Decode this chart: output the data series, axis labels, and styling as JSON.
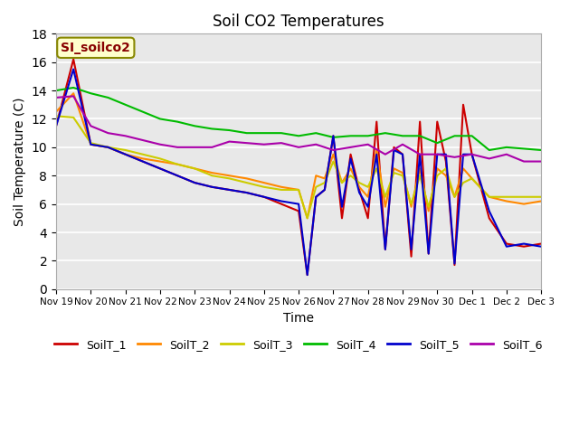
{
  "title": "Soil CO2 Temperatures",
  "xlabel": "Time",
  "ylabel": "Soil Temperature (C)",
  "annotation": "SI_soilco2",
  "ylim": [
    0,
    18
  ],
  "fig_facecolor": "#ffffff",
  "plot_bg_color": "#e8e8e8",
  "series_colors": {
    "SoilT_1": "#cc0000",
    "SoilT_2": "#ff8800",
    "SoilT_3": "#cccc00",
    "SoilT_4": "#00bb00",
    "SoilT_5": "#0000cc",
    "SoilT_6": "#aa00aa"
  },
  "xtick_labels": [
    "Nov 19",
    "Nov 20",
    "Nov 21",
    "Nov 22",
    "Nov 23",
    "Nov 24",
    "Nov 25",
    "Nov 26",
    "Nov 27",
    "Nov 28",
    "Nov 29",
    "Nov 30",
    "Dec 1",
    "Dec 2",
    "Dec 3"
  ],
  "series": {
    "SoilT_1": {
      "x": [
        0,
        0.5,
        1.0,
        1.5,
        2.0,
        2.5,
        3.0,
        3.5,
        4.0,
        4.5,
        5.0,
        5.5,
        6.0,
        6.5,
        7.0,
        7.25,
        7.5,
        7.75,
        8.0,
        8.25,
        8.5,
        8.75,
        9.0,
        9.25,
        9.5,
        9.75,
        10.0,
        10.25,
        10.5,
        10.75,
        11.0,
        11.25,
        11.5,
        11.75,
        12.0,
        12.5,
        13.0,
        13.5,
        14.0
      ],
      "y": [
        11.5,
        16.2,
        10.2,
        10.0,
        9.5,
        9.0,
        8.5,
        8.0,
        7.5,
        7.2,
        7.0,
        6.8,
        6.5,
        6.0,
        5.5,
        1.0,
        6.5,
        7.0,
        10.8,
        5.0,
        9.5,
        7.0,
        5.0,
        11.8,
        2.8,
        10.0,
        9.5,
        2.3,
        11.8,
        2.5,
        11.8,
        9.0,
        1.7,
        13.0,
        9.5,
        5.0,
        3.2,
        3.0,
        3.2
      ]
    },
    "SoilT_2": {
      "x": [
        0,
        0.5,
        1.0,
        1.5,
        2.0,
        2.5,
        3.0,
        3.5,
        4.0,
        4.5,
        5.0,
        5.5,
        6.0,
        6.5,
        7.0,
        7.25,
        7.5,
        7.75,
        8.0,
        8.25,
        8.5,
        8.75,
        9.0,
        9.25,
        9.5,
        9.75,
        10.0,
        10.25,
        10.5,
        10.75,
        11.0,
        11.25,
        11.5,
        11.75,
        12.0,
        12.5,
        13.0,
        13.5,
        14.0
      ],
      "y": [
        12.5,
        13.8,
        10.2,
        10.0,
        9.5,
        9.2,
        9.0,
        8.8,
        8.5,
        8.2,
        8.0,
        7.8,
        7.5,
        7.2,
        7.0,
        5.0,
        8.0,
        7.8,
        9.5,
        7.5,
        8.5,
        7.2,
        6.5,
        9.8,
        5.8,
        8.5,
        8.2,
        5.8,
        8.5,
        5.5,
        8.5,
        8.0,
        6.5,
        8.5,
        7.8,
        6.5,
        6.2,
        6.0,
        6.2
      ]
    },
    "SoilT_3": {
      "x": [
        0,
        0.5,
        1.0,
        1.5,
        2.0,
        2.5,
        3.0,
        3.5,
        4.0,
        4.5,
        5.0,
        5.5,
        6.0,
        6.5,
        7.0,
        7.25,
        7.5,
        7.75,
        8.0,
        8.25,
        8.5,
        8.75,
        9.0,
        9.25,
        9.5,
        9.75,
        10.0,
        10.25,
        10.5,
        10.75,
        11.0,
        11.25,
        11.5,
        11.75,
        12.0,
        12.5,
        13.0,
        13.5,
        14.0
      ],
      "y": [
        12.2,
        12.1,
        10.3,
        10.0,
        9.8,
        9.5,
        9.2,
        8.8,
        8.5,
        8.0,
        7.8,
        7.5,
        7.2,
        7.0,
        7.0,
        5.0,
        7.2,
        7.5,
        9.0,
        7.5,
        8.0,
        7.5,
        7.2,
        8.5,
        6.5,
        8.2,
        8.0,
        6.0,
        8.0,
        5.8,
        8.0,
        8.5,
        6.5,
        7.5,
        7.8,
        6.5,
        6.5,
        6.5,
        6.5
      ]
    },
    "SoilT_4": {
      "x": [
        0,
        0.5,
        1.0,
        1.5,
        2.0,
        2.5,
        3.0,
        3.5,
        4.0,
        4.5,
        5.0,
        5.5,
        6.0,
        6.5,
        7.0,
        7.5,
        8.0,
        8.5,
        9.0,
        9.5,
        10.0,
        10.5,
        11.0,
        11.5,
        12.0,
        12.5,
        13.0,
        13.5,
        14.0
      ],
      "y": [
        14.0,
        14.2,
        13.8,
        13.5,
        13.0,
        12.5,
        12.0,
        11.8,
        11.5,
        11.3,
        11.2,
        11.0,
        11.0,
        11.0,
        10.8,
        11.0,
        10.7,
        10.8,
        10.8,
        11.0,
        10.8,
        10.8,
        10.3,
        10.8,
        10.8,
        9.8,
        10.0,
        9.9,
        9.8
      ]
    },
    "SoilT_5": {
      "x": [
        0,
        0.5,
        1.0,
        1.5,
        2.0,
        2.5,
        3.0,
        3.5,
        4.0,
        4.5,
        5.0,
        5.5,
        6.0,
        6.5,
        7.0,
        7.25,
        7.5,
        7.75,
        8.0,
        8.25,
        8.5,
        8.75,
        9.0,
        9.25,
        9.5,
        9.75,
        10.0,
        10.25,
        10.5,
        10.75,
        11.0,
        11.25,
        11.5,
        11.75,
        12.0,
        12.5,
        13.0,
        13.5,
        14.0
      ],
      "y": [
        11.5,
        15.5,
        10.2,
        10.0,
        9.5,
        9.0,
        8.5,
        8.0,
        7.5,
        7.2,
        7.0,
        6.8,
        6.5,
        6.2,
        6.0,
        1.0,
        6.5,
        7.0,
        10.8,
        5.8,
        9.2,
        6.8,
        5.8,
        9.5,
        2.8,
        9.8,
        9.5,
        2.8,
        9.5,
        2.5,
        9.5,
        9.5,
        1.8,
        9.5,
        9.5,
        5.5,
        3.0,
        3.2,
        3.0
      ]
    },
    "SoilT_6": {
      "x": [
        0,
        0.5,
        1.0,
        1.5,
        2.0,
        2.5,
        3.0,
        3.5,
        4.0,
        4.5,
        5.0,
        5.5,
        6.0,
        6.5,
        7.0,
        7.5,
        8.0,
        8.5,
        9.0,
        9.5,
        10.0,
        10.5,
        11.0,
        11.5,
        12.0,
        12.5,
        13.0,
        13.5,
        14.0
      ],
      "y": [
        13.5,
        13.6,
        11.5,
        11.0,
        10.8,
        10.5,
        10.2,
        10.0,
        10.0,
        10.0,
        10.4,
        10.3,
        10.2,
        10.3,
        10.0,
        10.2,
        9.8,
        10.0,
        10.2,
        9.5,
        10.2,
        9.5,
        9.5,
        9.3,
        9.5,
        9.2,
        9.5,
        9.0,
        9.0
      ]
    }
  }
}
